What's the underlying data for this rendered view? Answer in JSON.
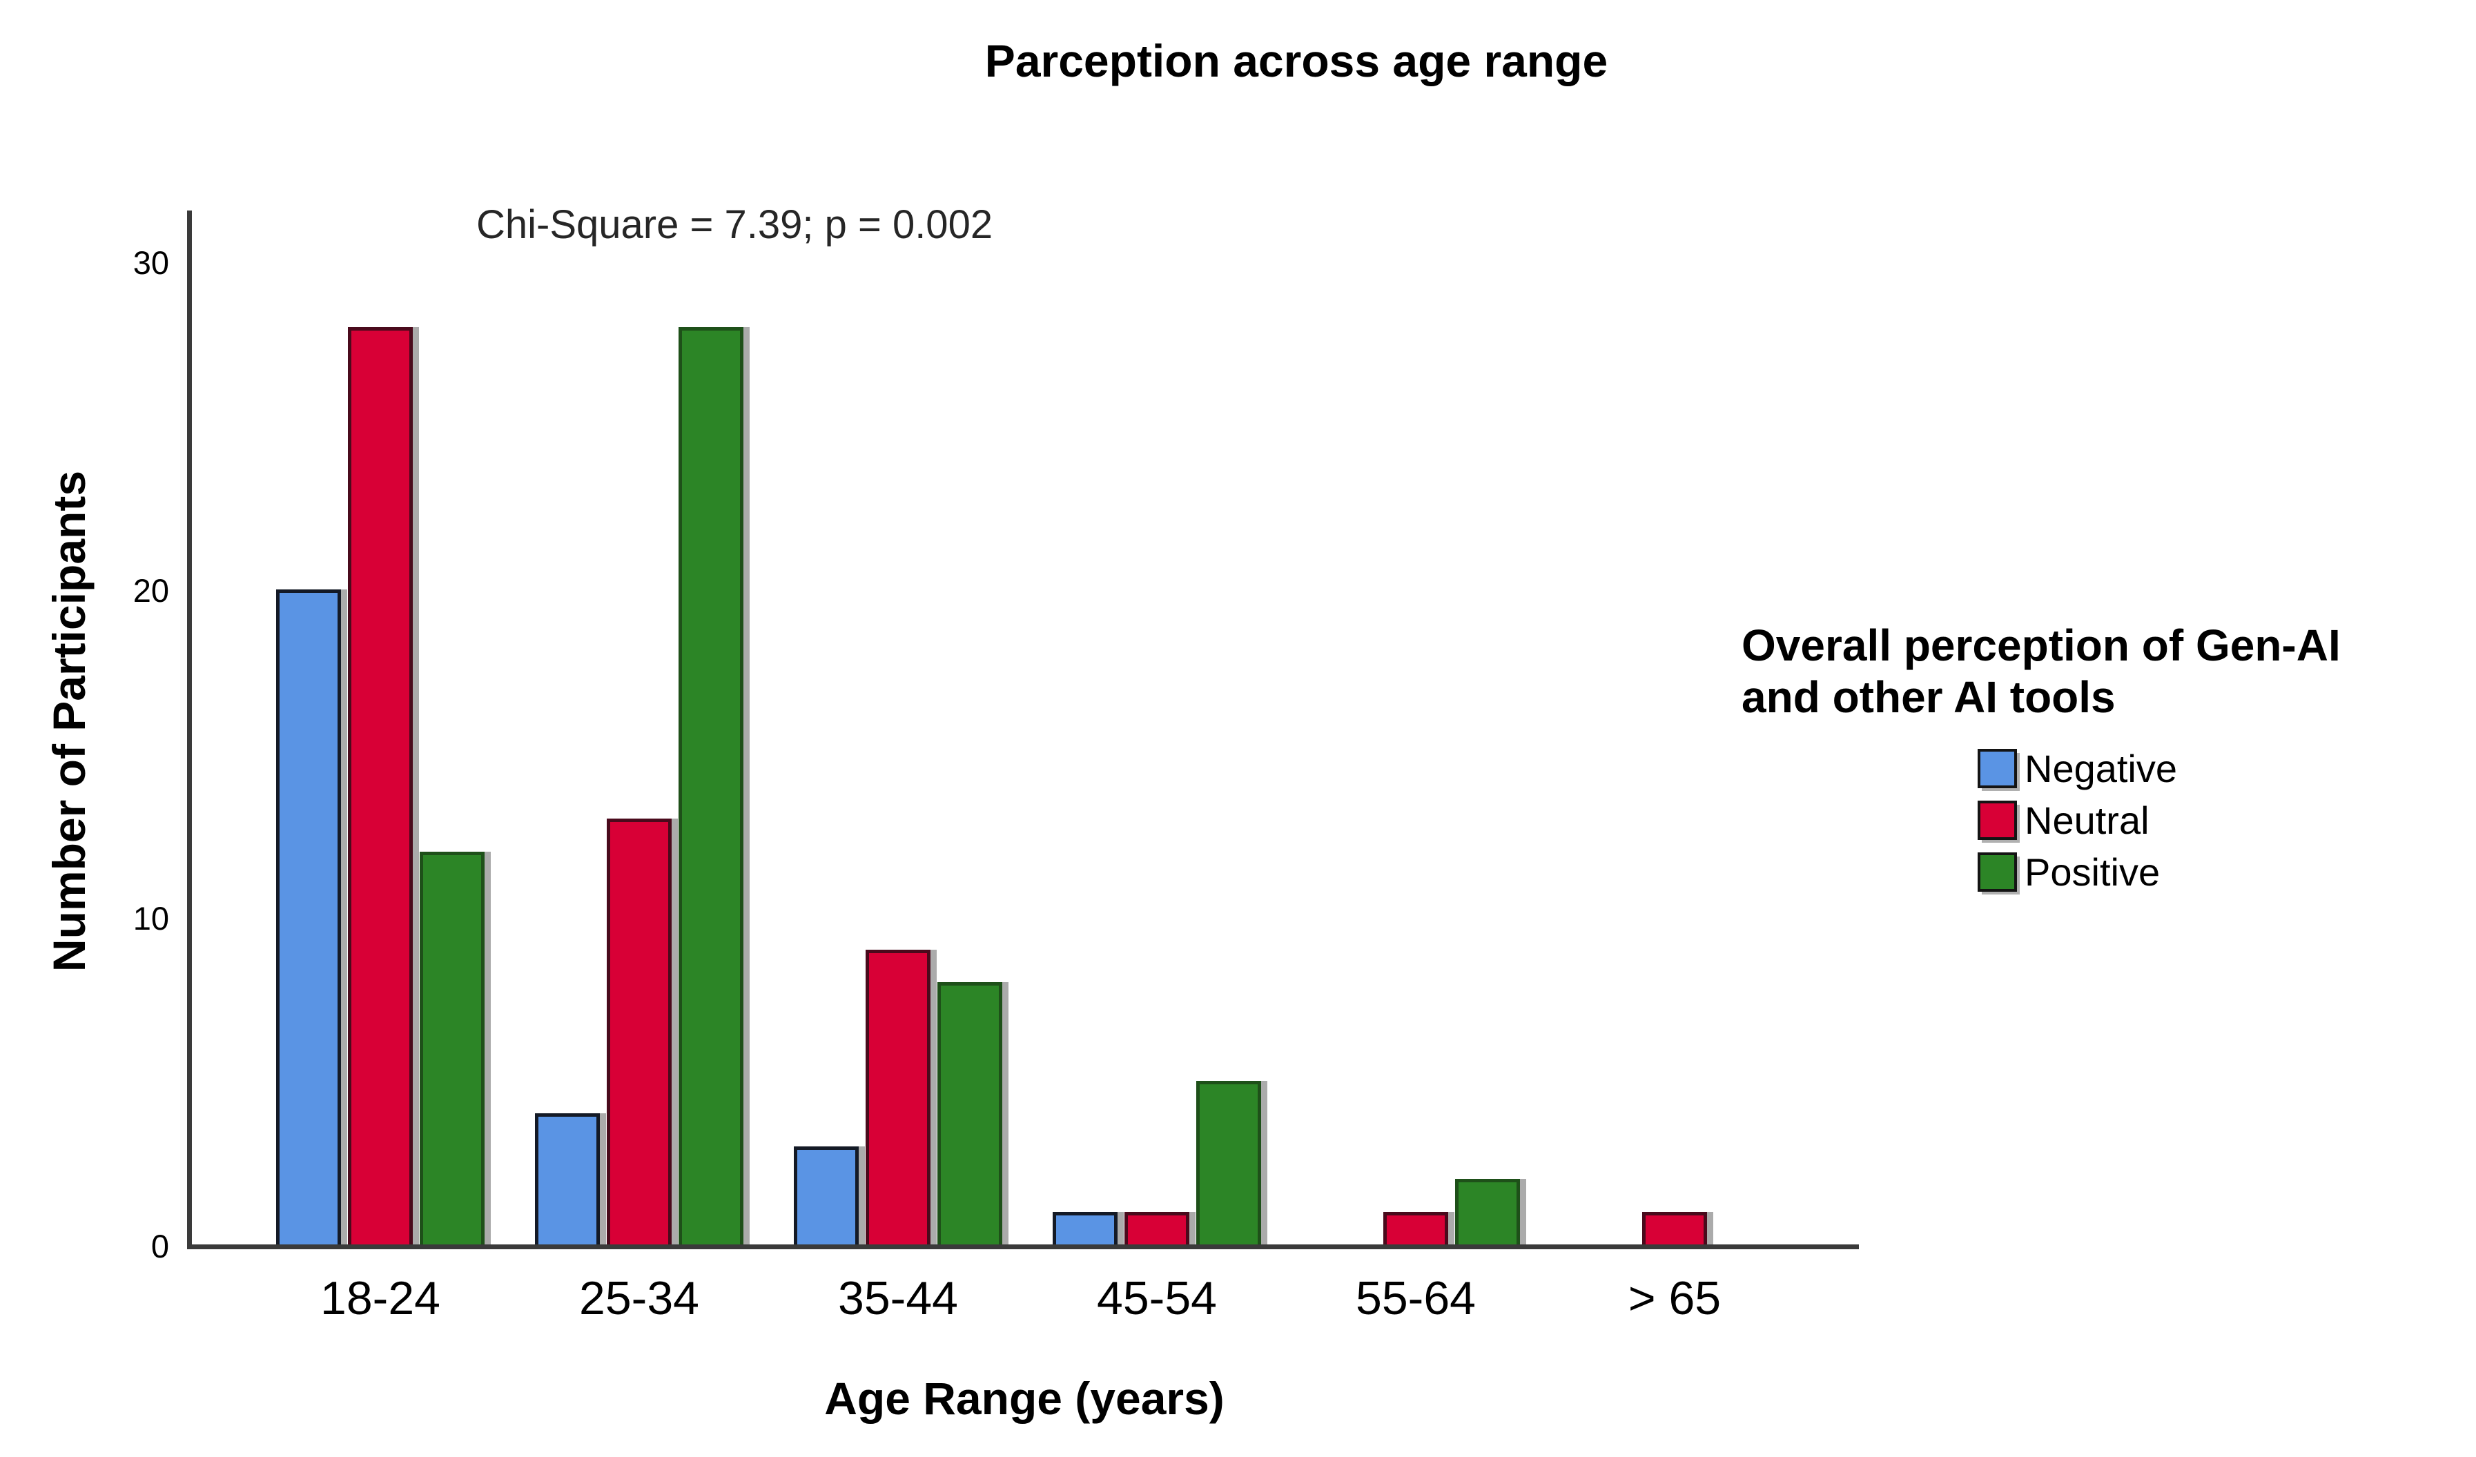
{
  "chart_data": {
    "type": "bar",
    "title": "Parception across age range",
    "annotation": "Chi-Square = 7.39; p = 0.002",
    "xlabel": "Age Range (years)",
    "ylabel": "Number of Participants",
    "categories": [
      "18-24",
      "25-34",
      "35-44",
      "45-54",
      "55-64",
      "> 65"
    ],
    "series": [
      {
        "name": "Negative",
        "color": "#5A94E4",
        "border_color": "#141A26",
        "values": [
          20,
          4,
          3,
          1,
          0,
          0
        ]
      },
      {
        "name": "Neutral",
        "color": "#D80036",
        "border_color": "#4A0A1C",
        "values": [
          28,
          13,
          9,
          1,
          1,
          1
        ]
      },
      {
        "name": "Positive",
        "color": "#2C8526",
        "border_color": "#1E5019",
        "values": [
          12,
          28,
          8,
          5,
          2,
          0
        ]
      }
    ],
    "yticks": [
      0,
      10,
      20,
      30
    ],
    "ylim": [
      0,
      31.6
    ],
    "grid": false,
    "axis_color": "#3A3A3A",
    "bar_shadow_color": "#ABABAB",
    "legend": {
      "position": "right",
      "title_line1": "Overall perception of Gen-AI",
      "title_line2": "and other AI tools"
    }
  }
}
